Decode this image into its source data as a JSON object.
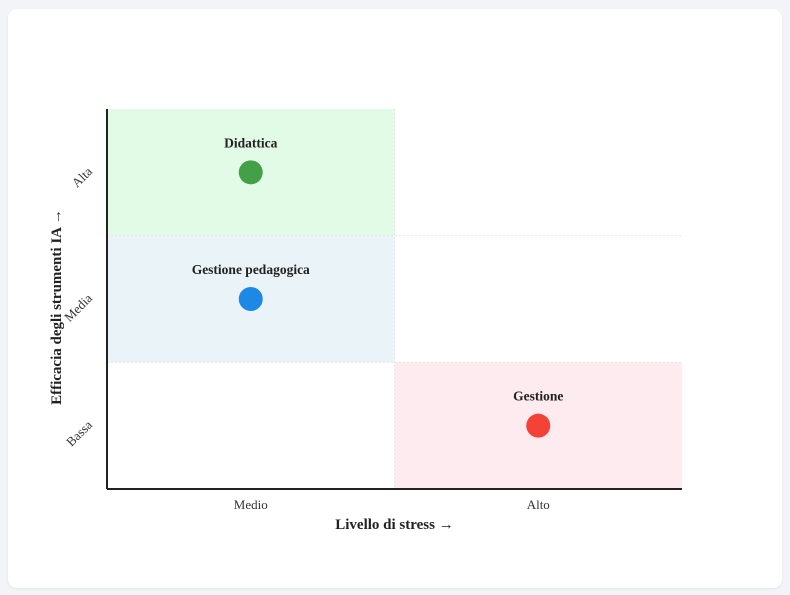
{
  "chart_data": {
    "type": "scatter",
    "xlabel": "Livello di stress →",
    "ylabel": "Efficacia degli strumenti IA →",
    "x_categories": [
      "Medio",
      "Alto"
    ],
    "y_categories": [
      "Bassa",
      "Media",
      "Alta"
    ],
    "grid": true,
    "points": [
      {
        "label": "Didattica",
        "x": "Medio",
        "y": "Alta",
        "color": "#43a047"
      },
      {
        "label": "Gestione pedagogica",
        "x": "Medio",
        "y": "Media",
        "color": "#1e88e5"
      },
      {
        "label": "Gestione",
        "x": "Alto",
        "y": "Bassa",
        "color": "#f44336"
      }
    ],
    "highlight_cells": [
      {
        "x": "Medio",
        "y": "Alta",
        "color": "#e2fbe6"
      },
      {
        "x": "Medio",
        "y": "Media",
        "color": "#eaf3f8"
      },
      {
        "x": "Alto",
        "y": "Bassa",
        "color": "#fdebef"
      }
    ]
  }
}
